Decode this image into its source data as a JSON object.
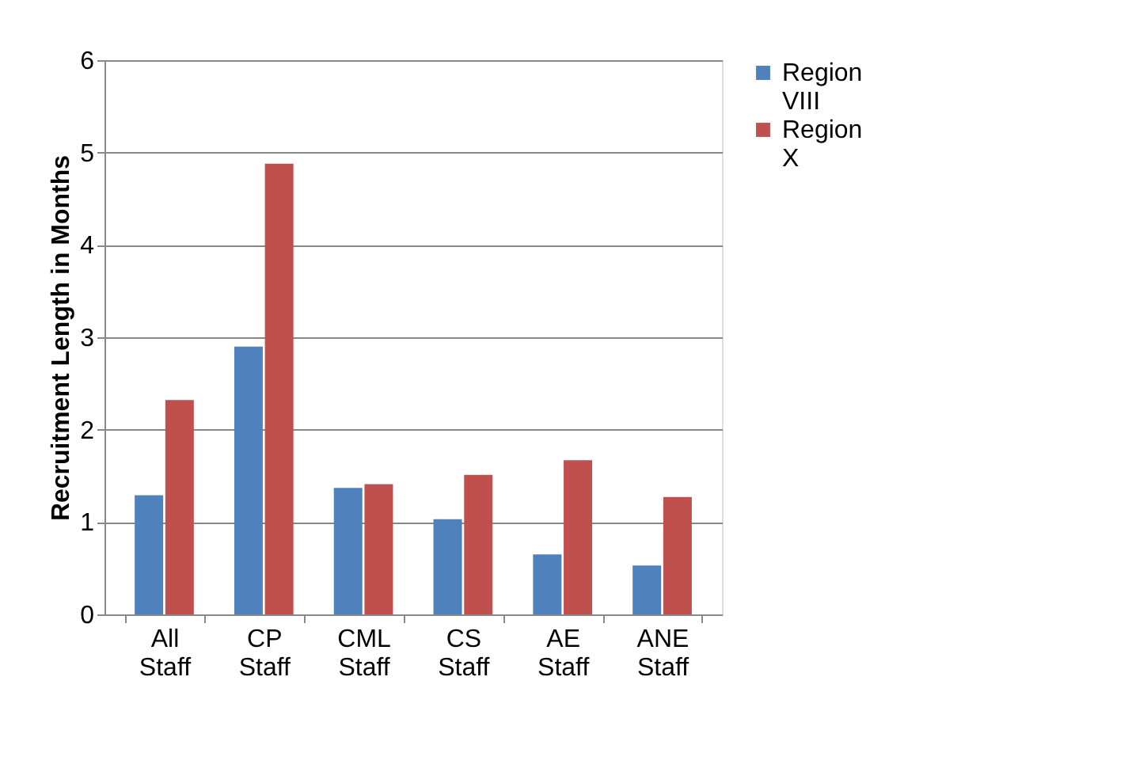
{
  "chart_data": {
    "type": "bar",
    "ylabel": "Recruitment Length in Months",
    "categories": [
      "All Staff",
      "CP Staff",
      "CML Staff",
      "CS Staff",
      "AE Staff",
      "ANE Staff"
    ],
    "series": [
      {
        "name": "Region VIII",
        "color": "#4f81bd",
        "values": [
          1.29,
          2.9,
          1.37,
          1.03,
          0.65,
          0.53
        ]
      },
      {
        "name": "Region X",
        "color": "#c0504d",
        "values": [
          2.32,
          4.88,
          1.41,
          1.51,
          1.67,
          1.27
        ]
      }
    ],
    "ylim": [
      0,
      6
    ],
    "yticks": [
      0,
      1,
      2,
      3,
      4,
      5,
      6
    ],
    "grid": "y",
    "legend": "right"
  }
}
